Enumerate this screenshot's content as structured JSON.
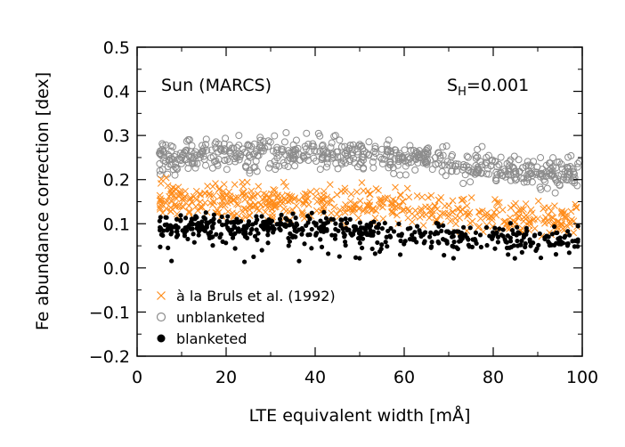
{
  "chart_data": {
    "type": "scatter",
    "title": "",
    "xlabel": "LTE equivalent width [mÅ]",
    "ylabel": "Fe abundance correction [dex]",
    "xlim": [
      0,
      100
    ],
    "ylim": [
      -0.2,
      0.5
    ],
    "x_ticks": [
      0,
      20,
      40,
      60,
      80,
      100
    ],
    "x_tick_labels": [
      "0",
      "20",
      "40",
      "60",
      "80",
      "100"
    ],
    "y_ticks": [
      -0.2,
      -0.1,
      0.0,
      0.1,
      0.2,
      0.3,
      0.4,
      0.5
    ],
    "y_tick_labels": [
      "−0.2",
      "−0.1",
      "0.0",
      "0.1",
      "0.2",
      "0.3",
      "0.4",
      "0.5"
    ],
    "annotations": {
      "model": "Sun (MARCS)",
      "sh_prefix": "S",
      "sh_subscript": "H",
      "sh_value": "=0.001"
    },
    "legend_position": "bottom-left",
    "series": [
      {
        "name": "à la Bruls et al. (1992)",
        "marker": "cross",
        "color": "#ff8c1a",
        "trend": {
          "x": [
            5,
            20,
            40,
            60,
            80,
            100
          ],
          "y": [
            0.155,
            0.15,
            0.148,
            0.14,
            0.12,
            0.105
          ]
        },
        "spread": 0.02,
        "n": 520
      },
      {
        "name": "unblanketed",
        "marker": "open-circle",
        "color": "#8c8c8c",
        "trend": {
          "x": [
            5,
            20,
            40,
            60,
            80,
            100
          ],
          "y": [
            0.25,
            0.255,
            0.26,
            0.25,
            0.23,
            0.21
          ]
        },
        "spread": 0.018,
        "n": 620
      },
      {
        "name": "blanketed",
        "marker": "filled-circle",
        "color": "#000000",
        "trend": {
          "x": [
            5,
            20,
            40,
            60,
            80,
            100
          ],
          "y": [
            0.095,
            0.097,
            0.092,
            0.075,
            0.065,
            0.06
          ]
        },
        "spread": 0.015,
        "n": 520
      }
    ]
  }
}
